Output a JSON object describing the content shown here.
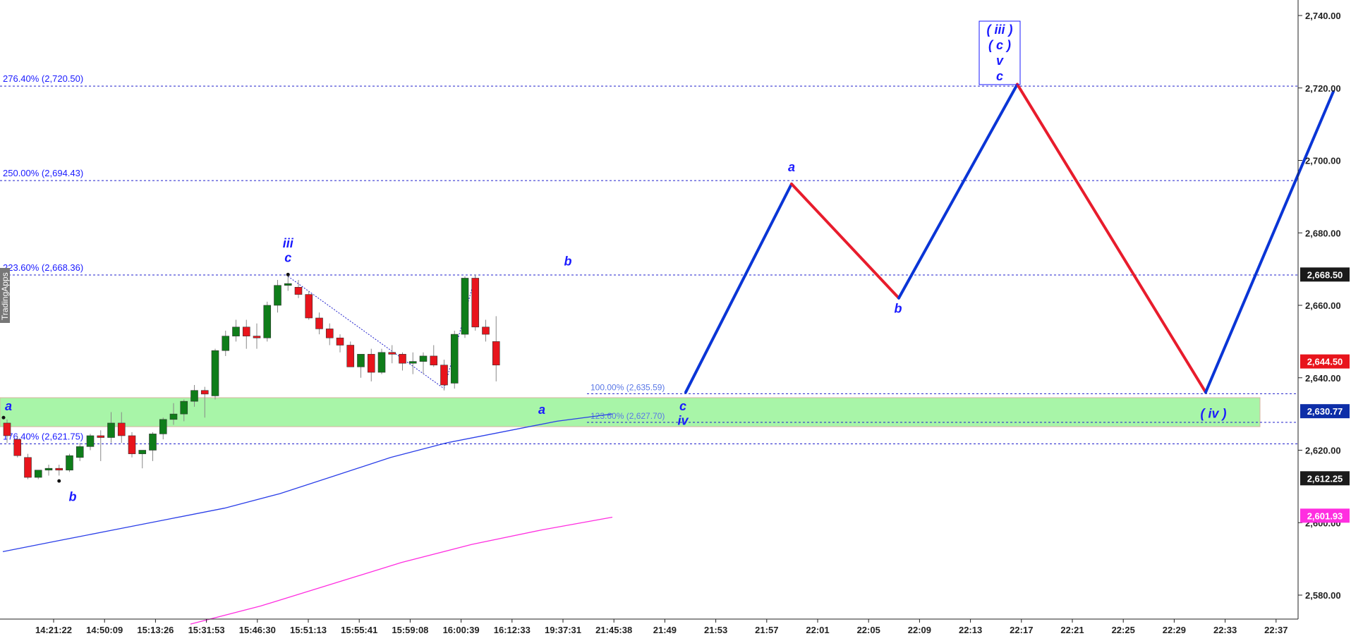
{
  "watermark": "TradingApps",
  "colors": {
    "up_candle": "#0f7d1a",
    "down_candle": "#e8141c",
    "fib_line": "#2020cc",
    "zone_fill": "#a8f5a8",
    "zone_border": "#d9b3a0",
    "ma_blue": "#2a3ee8",
    "ma_magenta": "#ff2ee0",
    "path_up": "#0a35d6",
    "path_down": "#e81c2c",
    "label_blue": "#1a1aff",
    "badge_black": "#1a1a1a",
    "badge_red": "#e8141c",
    "badge_blue": "#0d2ea8",
    "badge_magenta": "#ff2ee0"
  },
  "chart_data": {
    "type": "candlestick",
    "ylim": [
      2572,
      2748
    ],
    "y_ticks": [
      2580,
      2600,
      2620,
      2640,
      2660,
      2680,
      2700,
      2720,
      2740
    ],
    "y_tick_labels": [
      "2,580.00",
      "2,600.00",
      "2,620.00",
      "2,640.00",
      "2,660.00",
      "2,680.00",
      "2,700.00",
      "2,720.00",
      "2,740.00"
    ],
    "x_labels": [
      "14:21:22",
      "14:50:09",
      "15:13:26",
      "15:31:53",
      "15:46:30",
      "15:51:13",
      "15:55:41",
      "15:59:08",
      "16:00:39",
      "16:12:33",
      "19:37:31",
      "21:45:38",
      "21:49",
      "21:53",
      "21:57",
      "22:01",
      "22:05",
      "22:09",
      "22:13",
      "22:17",
      "22:21",
      "22:25",
      "22:29",
      "22:33",
      "22:37"
    ],
    "candles": [
      {
        "o": 2627.5,
        "h": 2628.5,
        "l": 2622,
        "c": 2624
      },
      {
        "o": 2623,
        "h": 2624,
        "l": 2618,
        "c": 2618.5
      },
      {
        "o": 2618,
        "h": 2619,
        "l": 2612,
        "c": 2612.5
      },
      {
        "o": 2612.5,
        "h": 2614.5,
        "l": 2612,
        "c": 2614.5
      },
      {
        "o": 2614.5,
        "h": 2616,
        "l": 2613,
        "c": 2615
      },
      {
        "o": 2615,
        "h": 2616,
        "l": 2613,
        "c": 2614.5
      },
      {
        "o": 2614.5,
        "h": 2619,
        "l": 2614,
        "c": 2618.5
      },
      {
        "o": 2618,
        "h": 2622,
        "l": 2617,
        "c": 2621
      },
      {
        "o": 2621,
        "h": 2624.5,
        "l": 2620,
        "c": 2624
      },
      {
        "o": 2624,
        "h": 2625.5,
        "l": 2617,
        "c": 2623.5
      },
      {
        "o": 2623.5,
        "h": 2630.5,
        "l": 2622,
        "c": 2627.5
      },
      {
        "o": 2627.5,
        "h": 2630.5,
        "l": 2622,
        "c": 2624
      },
      {
        "o": 2624,
        "h": 2625,
        "l": 2618,
        "c": 2619
      },
      {
        "o": 2619,
        "h": 2620,
        "l": 2615,
        "c": 2620
      },
      {
        "o": 2620,
        "h": 2625,
        "l": 2617,
        "c": 2624.5
      },
      {
        "o": 2624.5,
        "h": 2629,
        "l": 2623,
        "c": 2628.5
      },
      {
        "o": 2628.5,
        "h": 2633,
        "l": 2627,
        "c": 2630
      },
      {
        "o": 2630,
        "h": 2634,
        "l": 2628,
        "c": 2633.5
      },
      {
        "o": 2633.5,
        "h": 2638,
        "l": 2632,
        "c": 2636.5
      },
      {
        "o": 2636.5,
        "h": 2637.5,
        "l": 2629,
        "c": 2635.5
      },
      {
        "o": 2635,
        "h": 2648,
        "l": 2634,
        "c": 2647.5
      },
      {
        "o": 2647.5,
        "h": 2653,
        "l": 2646,
        "c": 2651.5
      },
      {
        "o": 2651.5,
        "h": 2656,
        "l": 2650,
        "c": 2654
      },
      {
        "o": 2654,
        "h": 2656,
        "l": 2648,
        "c": 2651.5
      },
      {
        "o": 2651.5,
        "h": 2655,
        "l": 2648,
        "c": 2651
      },
      {
        "o": 2651,
        "h": 2661,
        "l": 2650,
        "c": 2660
      },
      {
        "o": 2660,
        "h": 2667,
        "l": 2658,
        "c": 2665.5
      },
      {
        "o": 2665.5,
        "h": 2668.5,
        "l": 2664,
        "c": 2666
      },
      {
        "o": 2665,
        "h": 2667,
        "l": 2662,
        "c": 2663
      },
      {
        "o": 2663,
        "h": 2664,
        "l": 2656,
        "c": 2656.5
      },
      {
        "o": 2656.5,
        "h": 2658,
        "l": 2652,
        "c": 2653.5
      },
      {
        "o": 2653.5,
        "h": 2655,
        "l": 2649,
        "c": 2651
      },
      {
        "o": 2651,
        "h": 2652,
        "l": 2647,
        "c": 2649
      },
      {
        "o": 2649,
        "h": 2650,
        "l": 2643,
        "c": 2643
      },
      {
        "o": 2643,
        "h": 2646,
        "l": 2640,
        "c": 2646.5
      },
      {
        "o": 2646.5,
        "h": 2648,
        "l": 2639,
        "c": 2641.5
      },
      {
        "o": 2641.5,
        "h": 2648,
        "l": 2641,
        "c": 2647
      },
      {
        "o": 2647,
        "h": 2649,
        "l": 2644,
        "c": 2646.5
      },
      {
        "o": 2646.5,
        "h": 2647,
        "l": 2642,
        "c": 2644
      },
      {
        "o": 2644,
        "h": 2647,
        "l": 2641,
        "c": 2644.5
      },
      {
        "o": 2644.5,
        "h": 2647,
        "l": 2641,
        "c": 2646
      },
      {
        "o": 2646,
        "h": 2649,
        "l": 2643,
        "c": 2643.5
      },
      {
        "o": 2643.5,
        "h": 2645,
        "l": 2636.5,
        "c": 2638
      },
      {
        "o": 2638.5,
        "h": 2653,
        "l": 2637,
        "c": 2652
      },
      {
        "o": 2652,
        "h": 2668,
        "l": 2651,
        "c": 2667.5
      },
      {
        "o": 2667.5,
        "h": 2668.5,
        "l": 2653,
        "c": 2654
      },
      {
        "o": 2654,
        "h": 2656,
        "l": 2650,
        "c": 2652
      },
      {
        "o": 2650,
        "h": 2657,
        "l": 2639,
        "c": 2643.5
      }
    ],
    "fib_levels": [
      {
        "label": "276.40% (2,720.50)",
        "value": 2720.5
      },
      {
        "label": "250.00% (2,694.43)",
        "value": 2694.43
      },
      {
        "label": "223.60% (2,668.36)",
        "value": 2668.36
      },
      {
        "label": "176.40% (2,621.75)",
        "value": 2621.75
      }
    ],
    "fib_small": [
      {
        "label": "100.00% (2,635.59)",
        "value": 2635.59
      },
      {
        "label": "123.60% (2,627.70)",
        "value": 2627.7
      }
    ],
    "zone": {
      "top": 2634.5,
      "bottom": 2626.5
    },
    "projection_path": [
      2636,
      2693.5,
      2662,
      2721,
      2636,
      2719
    ],
    "wave_labels": [
      {
        "text": "a",
        "anchor": "c0",
        "price": 2631
      },
      {
        "text": "b",
        "anchor": "c5",
        "price": 2606
      },
      {
        "text": "iii",
        "anchor": "c27",
        "price": 2676
      },
      {
        "text": "c",
        "anchor": "c27",
        "price": 2672
      },
      {
        "text": "b",
        "anchor": "c44",
        "price": 2671
      },
      {
        "text": "a",
        "anchor": "c42",
        "price": 2630
      },
      {
        "text": "c",
        "anchor": "p0",
        "price": 2631
      },
      {
        "text": "iv",
        "anchor": "p0",
        "price": 2627
      },
      {
        "text": "a",
        "anchor": "p1",
        "price": 2697
      },
      {
        "text": "b",
        "anchor": "p2",
        "price": 2658
      },
      {
        "text": "( iv )",
        "anchor": "p4",
        "price": 2629
      }
    ],
    "boxed_label": [
      "( iii )",
      "( c )",
      "v",
      "c"
    ],
    "price_badges": [
      {
        "label": "2,668.50",
        "value": 2668.5,
        "color": "#1a1a1a"
      },
      {
        "label": "2,644.50",
        "value": 2644.5,
        "color": "#e8141c"
      },
      {
        "label": "2,630.77",
        "value": 2630.77,
        "color": "#0d2ea8"
      },
      {
        "label": "2,612.25",
        "value": 2612.25,
        "color": "#1a1a1a"
      },
      {
        "label": "2,601.93",
        "value": 2601.93,
        "color": "#ff2ee0"
      }
    ],
    "ma_blue": [
      2592,
      2595,
      2598,
      2601,
      2604,
      2608,
      2613,
      2618,
      2622,
      2625,
      2628,
      2630
    ],
    "ma_magenta": [
      2572,
      2577,
      2583,
      2589,
      2594,
      2598,
      2601.5
    ]
  }
}
